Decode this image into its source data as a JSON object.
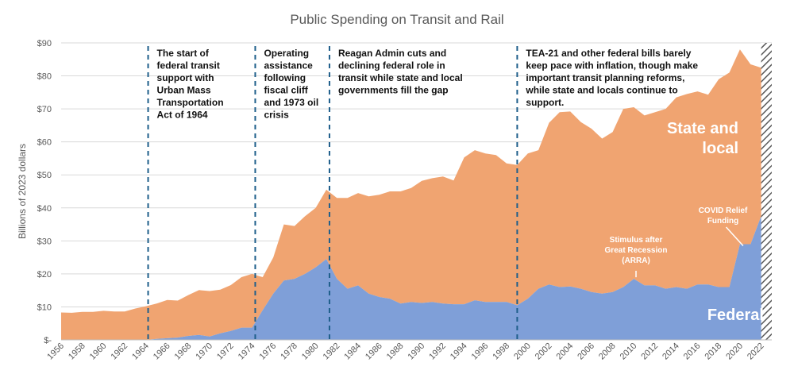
{
  "chart_data": {
    "type": "area",
    "title": "Public Spending on Transit and Rail",
    "ylabel": "Billions of 2023 dollars",
    "xlabel": "",
    "ylim": [
      0,
      90
    ],
    "y_ticks": [
      "$-",
      "$10",
      "$20",
      "$30",
      "$40",
      "$50",
      "$60",
      "$70",
      "$80",
      "$90"
    ],
    "y_tick_values": [
      0,
      10,
      20,
      30,
      40,
      50,
      60,
      70,
      80,
      90
    ],
    "x_start": 1956,
    "x_end": 2023,
    "x_tick_labels": [
      "1956",
      "1958",
      "1960",
      "1962",
      "1964",
      "1966",
      "1968",
      "1970",
      "1972",
      "1974",
      "1976",
      "1978",
      "1980",
      "1982",
      "1984",
      "1986",
      "1988",
      "1990",
      "1992",
      "1994",
      "1996",
      "1998",
      "2000",
      "2002",
      "2004",
      "2006",
      "2008",
      "2010",
      "2012",
      "2014",
      "2016",
      "2018",
      "2020",
      "2022"
    ],
    "colors": {
      "state_local": "#f0a471",
      "federal": "#7f9fd8",
      "divider": "#1f5f8b",
      "title": "#595959"
    },
    "series": [
      {
        "name": "Federal",
        "values": [
          0,
          0,
          0,
          0,
          0,
          0,
          0,
          0,
          0,
          0.3,
          0.5,
          0.7,
          1.2,
          1.5,
          1.0,
          2.0,
          2.7,
          3.7,
          3.7,
          9.0,
          14.0,
          18.0,
          18.5,
          20.0,
          22.0,
          24.5,
          18.5,
          15.5,
          16.5,
          14.0,
          13.0,
          12.5,
          11.0,
          11.5,
          11.2,
          11.5,
          11.0,
          10.8,
          10.8,
          12.0,
          11.5,
          11.5,
          11.5,
          10.5,
          12.5,
          15.5,
          16.8,
          16.0,
          16.2,
          15.5,
          14.5,
          14.0,
          14.5,
          16.0,
          18.5,
          16.5,
          16.5,
          15.5,
          16.0,
          15.5,
          16.8,
          16.8,
          16.0,
          16.0,
          29.0,
          29.0,
          37.5,
          24.5
        ]
      },
      {
        "name": "State and local",
        "values": [
          8.3,
          8.2,
          8.5,
          8.5,
          8.8,
          8.6,
          8.6,
          9.5,
          10.2,
          10.7,
          11.6,
          11.2,
          12.4,
          13.6,
          13.8,
          13.2,
          13.9,
          15.3,
          16.3,
          10.0,
          11.0,
          17.0,
          16.0,
          17.5,
          18.0,
          21.0,
          24.5,
          27.5,
          28.0,
          29.5,
          31.0,
          32.5,
          34.0,
          34.5,
          37.0,
          37.5,
          38.5,
          37.5,
          44.5,
          45.5,
          45.0,
          44.5,
          42.0,
          42.5,
          44.0,
          42.0,
          49.0,
          53.0,
          53.0,
          50.5,
          49.5,
          47.0,
          48.5,
          54.0,
          52.0,
          51.5,
          52.5,
          54.5,
          57.5,
          59.0,
          58.5,
          57.5,
          63.0,
          65.0,
          59.0,
          54.5,
          45.0,
          58.5
        ]
      }
    ],
    "annotations": [
      {
        "year": 1964.2,
        "text": [
          "The start of",
          "federal transit",
          "support with",
          "Urban Mass",
          "Transportation",
          "Act of 1964"
        ]
      },
      {
        "year": 1974.3,
        "text": [
          "Operating",
          "assistance",
          "following",
          "fiscal cliff",
          "and 1973 oil",
          "crisis"
        ]
      },
      {
        "year": 1981.3,
        "text": [
          "Reagan Admin cuts and",
          "declining federal role in",
          "transit while state and local",
          "governments fill the gap"
        ]
      },
      {
        "year": 1999.0,
        "text": [
          "TEA-21 and other federal bills barely",
          "keep pace with inflation, though make",
          "important transit planning reforms,",
          "while state and locals continue to",
          "support."
        ]
      }
    ],
    "callouts": {
      "stimulus": [
        "Stimulus after",
        "Great Recession",
        "(ARRA)"
      ],
      "covid": [
        "COVID Relief",
        "Funding"
      ],
      "state_local_label": [
        "State and",
        "local"
      ],
      "federal_label": "Federal"
    },
    "projection_years": [
      2022,
      2023
    ]
  }
}
